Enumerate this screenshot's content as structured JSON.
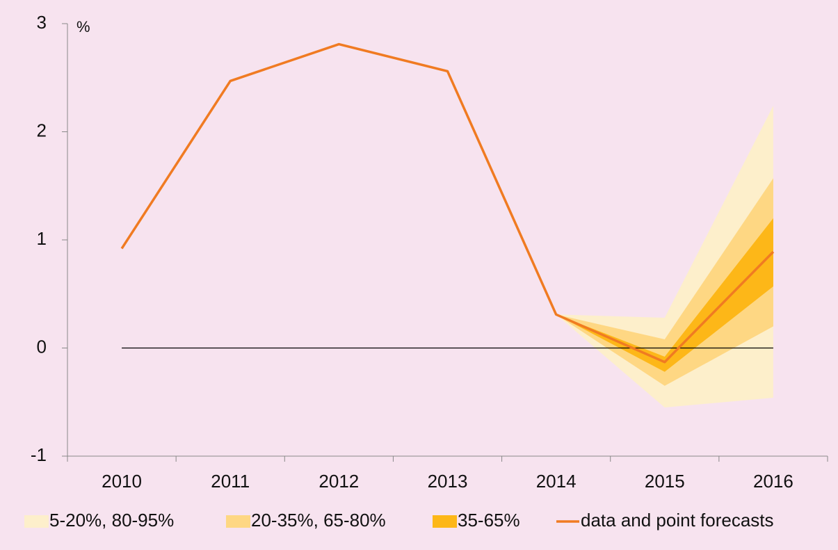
{
  "chart_data": {
    "type": "fan",
    "y_unit": "%",
    "categories": [
      "2010",
      "2011",
      "2012",
      "2013",
      "2014",
      "2015",
      "2016"
    ],
    "ylim": [
      -1,
      3
    ],
    "yticks": [
      -1,
      0,
      1,
      2,
      3
    ],
    "bands": [
      {
        "name": "5-20%, 80-95%",
        "color": "#fdefcb",
        "lower": [
          null,
          null,
          null,
          null,
          0.31,
          -0.55,
          -0.46
        ],
        "upper": [
          null,
          null,
          null,
          null,
          0.31,
          0.28,
          2.24
        ]
      },
      {
        "name": "20-35%, 65-80%",
        "color": "#fed783",
        "lower": [
          null,
          null,
          null,
          null,
          0.31,
          -0.35,
          0.2
        ],
        "upper": [
          null,
          null,
          null,
          null,
          0.31,
          0.08,
          1.57
        ]
      },
      {
        "name": "35-65%",
        "color": "#fdb718",
        "lower": [
          null,
          null,
          null,
          null,
          0.31,
          -0.22,
          0.57
        ],
        "upper": [
          null,
          null,
          null,
          null,
          0.31,
          -0.08,
          1.2
        ]
      }
    ],
    "series": [
      {
        "name": "data and point forecasts",
        "color": "#f07b22",
        "values": [
          0.92,
          2.47,
          2.81,
          2.56,
          0.31,
          -0.13,
          0.89
        ]
      }
    ]
  }
}
